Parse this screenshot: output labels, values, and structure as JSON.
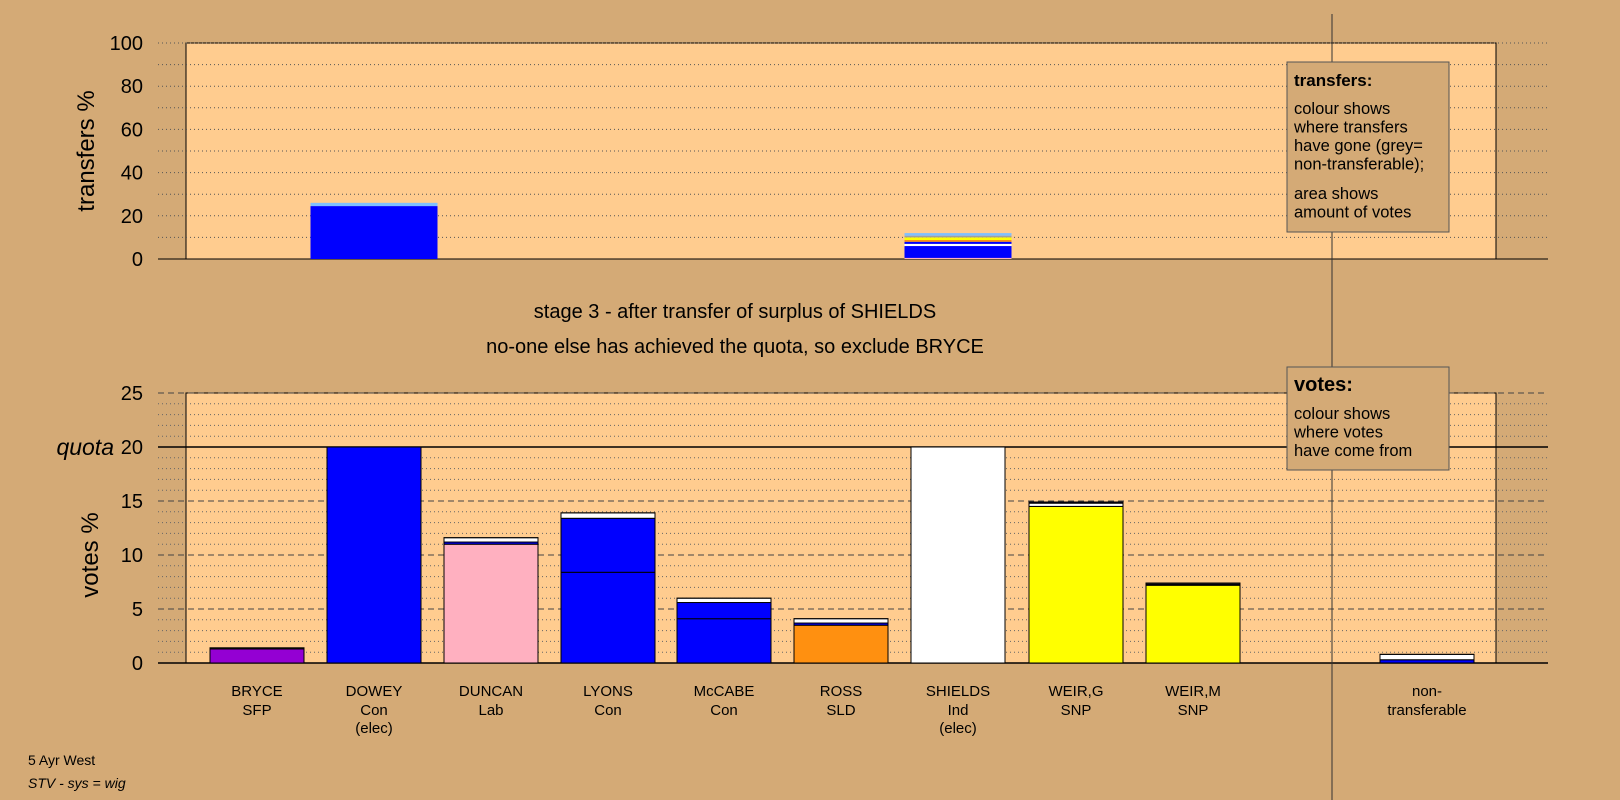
{
  "colors": {
    "page_background": "#d4aa76",
    "plot_background": "#ffcc8f",
    "blue": "#0000ff",
    "purple": "#9400d3",
    "pink": "#ffb0c0",
    "orange": "#ff9010",
    "yellow": "#ffff00",
    "white": "#ffffff",
    "grey": "#a0a0a0",
    "lightblue": "#80c0ff"
  },
  "stage_title": "stage 3 - after transfer of surplus of SHIELDS",
  "stage_subtitle": "no-one else has achieved the quota, so exclude BRYCE",
  "footer": {
    "line1": "5 Ayr West",
    "line2": "STV - sys = wig"
  },
  "chart_data": [
    {
      "type": "bar",
      "ylabel": "transfers %",
      "ylim": [
        0,
        100
      ],
      "yticks": [
        0,
        20,
        40,
        60,
        80,
        100
      ],
      "grid": "dotted",
      "legend": {
        "position": "top-right",
        "title": "transfers:",
        "lines": [
          "colour shows",
          "where transfers",
          "have gone (grey=",
          "non-transferable);"
        ],
        "lines2": [
          "area shows",
          "amount of votes"
        ]
      },
      "bars": [
        {
          "category": "DOWEY",
          "segments": [
            {
              "color": "blue",
              "value": 24.5
            },
            {
              "color": "lightblue",
              "value": 1.5
            }
          ]
        },
        {
          "category": "SHIELDS",
          "segments": [
            {
              "color": "pink",
              "value": 0.5
            },
            {
              "color": "blue",
              "value": 5.5
            },
            {
              "color": "white",
              "value": 1
            },
            {
              "color": "blue",
              "value": 1
            },
            {
              "color": "orange",
              "value": 0.8
            },
            {
              "color": "yellow",
              "value": 1.2
            },
            {
              "color": "grey",
              "value": 0.8
            },
            {
              "color": "lightblue",
              "value": 1.2
            }
          ]
        }
      ]
    },
    {
      "type": "bar",
      "stacked": true,
      "ylabel": "votes %",
      "ylim": [
        0,
        25
      ],
      "yticks": [
        0,
        5,
        10,
        15,
        20,
        25
      ],
      "quota": 20,
      "quota_label": "quota",
      "grid": "dashed",
      "legend": {
        "position": "top-right",
        "title": "votes:",
        "lines": [
          "colour shows",
          "where votes",
          "have come from"
        ]
      },
      "categories": [
        {
          "name": "BRYCE",
          "party": "SFP",
          "note": "",
          "segments": [
            {
              "color": "purple",
              "value": 1.3
            },
            {
              "color": "white",
              "value": 0.1
            }
          ]
        },
        {
          "name": "DOWEY",
          "party": "Con",
          "note": "(elec)",
          "segments": [
            {
              "color": "blue",
              "value": 20
            }
          ]
        },
        {
          "name": "DUNCAN",
          "party": "Lab",
          "note": "",
          "segments": [
            {
              "color": "pink",
              "value": 11.0
            },
            {
              "color": "blue",
              "value": 0.2
            },
            {
              "color": "white",
              "value": 0.4
            }
          ]
        },
        {
          "name": "LYONS",
          "party": "Con",
          "note": "",
          "segments": [
            {
              "color": "blue",
              "value": 8.4
            },
            {
              "color": "blue",
              "value": 5.0
            },
            {
              "color": "white",
              "value": 0.5
            }
          ]
        },
        {
          "name": "McCABE",
          "party": "Con",
          "note": "",
          "segments": [
            {
              "color": "blue",
              "value": 4.1
            },
            {
              "color": "blue",
              "value": 1.5
            },
            {
              "color": "white",
              "value": 0.4
            }
          ]
        },
        {
          "name": "ROSS",
          "party": "SLD",
          "note": "",
          "segments": [
            {
              "color": "orange",
              "value": 3.5
            },
            {
              "color": "blue",
              "value": 0.2
            },
            {
              "color": "white",
              "value": 0.4
            }
          ]
        },
        {
          "name": "SHIELDS",
          "party": "Ind",
          "note": "(elec)",
          "segments": [
            {
              "color": "white",
              "value": 20
            }
          ]
        },
        {
          "name": "WEIR,G",
          "party": "SNP",
          "note": "",
          "segments": [
            {
              "color": "yellow",
              "value": 14.5
            },
            {
              "color": "white",
              "value": 0.3
            },
            {
              "color": "blue",
              "value": 0.1
            }
          ]
        },
        {
          "name": "WEIR,M",
          "party": "SNP",
          "note": "",
          "segments": [
            {
              "color": "yellow",
              "value": 7.2
            },
            {
              "color": "blue",
              "value": 0.1
            },
            {
              "color": "white",
              "value": 0.1
            }
          ]
        }
      ],
      "nontransferable": {
        "label_line1": "non-",
        "label_line2": "transferable",
        "segments": [
          {
            "color": "blue",
            "value": 0.3
          },
          {
            "color": "white",
            "value": 0.5
          }
        ]
      }
    }
  ]
}
